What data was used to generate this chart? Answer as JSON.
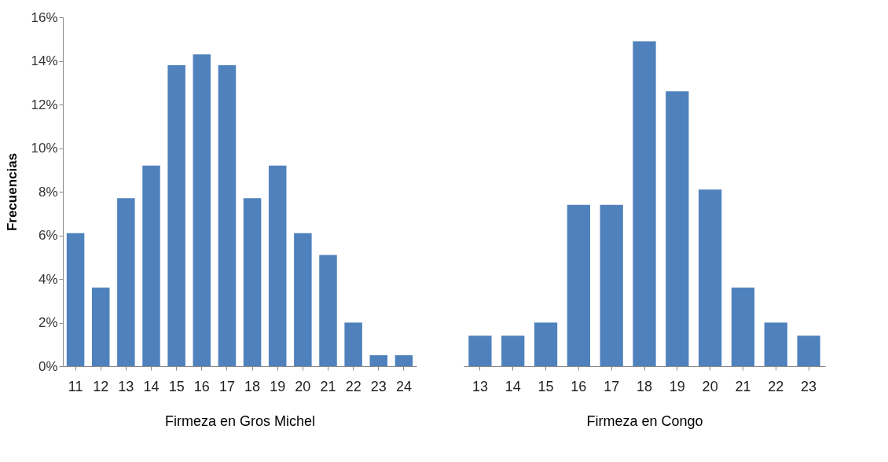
{
  "chart_data": [
    {
      "type": "bar",
      "xlabel": "Firmeza en Gros Michel",
      "ylabel": "Frecuencias",
      "categories": [
        "11",
        "12",
        "13",
        "14",
        "15",
        "16",
        "17",
        "18",
        "19",
        "20",
        "21",
        "22",
        "23",
        "24"
      ],
      "series": [
        {
          "color": "#4f81bd",
          "values": [
            6.1,
            3.6,
            7.7,
            9.2,
            13.8,
            14.3,
            13.8,
            7.7,
            9.2,
            6.1,
            5.1,
            2.0,
            0.5,
            0.5
          ]
        }
      ],
      "ylim": [
        0,
        16
      ],
      "yticks": [
        {
          "value": 0,
          "label": "0%"
        },
        {
          "value": 2,
          "label": "2%"
        },
        {
          "value": 4,
          "label": "4%"
        },
        {
          "value": 6,
          "label": "6%"
        },
        {
          "value": 8,
          "label": "8%"
        },
        {
          "value": 10,
          "label": "10%"
        },
        {
          "value": 12,
          "label": "12%"
        },
        {
          "value": 14,
          "label": "14%"
        },
        {
          "value": 16,
          "label": "16%"
        }
      ]
    },
    {
      "type": "bar",
      "xlabel": "Firmeza en Congo",
      "categories": [
        "13",
        "14",
        "15",
        "16",
        "17",
        "18",
        "19",
        "20",
        "21",
        "22",
        "23"
      ],
      "series": [
        {
          "color": "#4f81bd",
          "values": [
            1.4,
            1.4,
            2.0,
            7.4,
            7.4,
            14.9,
            12.6,
            8.1,
            3.6,
            2.0,
            1.4
          ]
        }
      ],
      "ylim": [
        0,
        16
      ],
      "tick_labels": "x"
    }
  ]
}
